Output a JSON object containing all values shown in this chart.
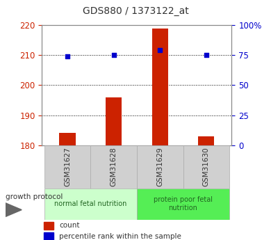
{
  "title": "GDS880 / 1373122_at",
  "samples": [
    "GSM31627",
    "GSM31628",
    "GSM31629",
    "GSM31630"
  ],
  "count_values": [
    184.0,
    196.0,
    219.0,
    183.0
  ],
  "percentile_values": [
    74.0,
    75.0,
    79.0,
    75.0
  ],
  "ylim_left": [
    180,
    220
  ],
  "ylim_right": [
    0,
    100
  ],
  "yticks_left": [
    180,
    190,
    200,
    210,
    220
  ],
  "yticks_right": [
    0,
    25,
    50,
    75,
    100
  ],
  "ytick_labels_right": [
    "0",
    "25",
    "50",
    "75",
    "100%"
  ],
  "bar_color": "#cc2200",
  "dot_color": "#0000cc",
  "bar_bottom": 180,
  "groups": [
    {
      "label": "normal fetal nutrition",
      "samples": [
        0,
        1
      ],
      "color": "#ccffcc"
    },
    {
      "label": "protein poor fetal\nnutrition",
      "samples": [
        2,
        3
      ],
      "color": "#55ee55"
    }
  ],
  "xlabel_group": "growth protocol",
  "legend_count": "count",
  "legend_percentile": "percentile rank within the sample",
  "bar_width": 0.35
}
